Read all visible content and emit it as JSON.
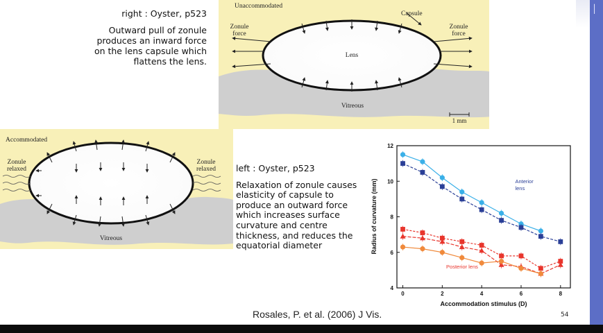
{
  "slide": {
    "right_caption": {
      "title": "right : Oyster, p523",
      "body": "Outward pull of zonule produces an inward force on the lens capsule which flattens the lens."
    },
    "left_caption": {
      "title": "left : Oyster, p523",
      "body": "Relaxation of zonule causes elasticity of capsule to produce an outward force which increases surface curvature and centre thickness, and reduces the equatorial diameter"
    },
    "citation": "Rosales, P. et al. (2006) J Vis.",
    "page_number": "54"
  },
  "diagram_unaccommodated": {
    "title": "Unaccommodated",
    "capsule": "Capsule",
    "zonule_left": [
      "Zonule",
      "force"
    ],
    "zonule_right": [
      "Zonule",
      "force"
    ],
    "lens": "Lens",
    "vitreous": "Vitreous",
    "scale": "1 mm"
  },
  "diagram_accommodated": {
    "title": "Accommodated",
    "zonule_left": [
      "Zonule",
      "relaxed"
    ],
    "zonule_right": [
      "Zonule",
      "relaxed"
    ],
    "vitreous": "Vitreous"
  },
  "colors": {
    "panel_bg": "#f8f0b8",
    "vitreous": "#cfcfcf",
    "anterior_light": "#3ab0e8",
    "anterior_dark": "#2a3f97",
    "posterior_light": "#f08a3c",
    "posterior_red": "#e8352c",
    "sidebar": "#5c6ec6"
  },
  "chart_data": {
    "type": "line",
    "xlabel": "Accommodation stimulus (D)",
    "ylabel": "Radius of curvature (mm)",
    "x_ticks": [
      "0",
      "2",
      "4",
      "6",
      "8"
    ],
    "y_ticks": [
      "4",
      "6",
      "8",
      "10",
      "12"
    ],
    "xlim": [
      -0.3,
      8.5
    ],
    "ylim": [
      4,
      12
    ],
    "annotations": [
      {
        "text": "Anterior",
        "x": 5.7,
        "y": 9.9,
        "color": "#2a3f97"
      },
      {
        "text": "lens",
        "x": 5.7,
        "y": 9.5,
        "color": "#2a3f97"
      },
      {
        "text": "Posterior lens",
        "x": 2.2,
        "y": 5.1,
        "color": "#e8352c"
      }
    ],
    "series": [
      {
        "name": "",
        "color": "#3ab0e8",
        "dash": "",
        "marker": "circle",
        "x": [
          0,
          1,
          2,
          3,
          4,
          5,
          6,
          7
        ],
        "values": [
          11.5,
          11.1,
          10.2,
          9.4,
          8.8,
          8.2,
          7.6,
          7.2
        ]
      },
      {
        "name": "",
        "color": "#2a3f97",
        "dash": "4,2",
        "marker": "square",
        "x": [
          0,
          1,
          2,
          3,
          4,
          5,
          6,
          7,
          8
        ],
        "values": [
          11.0,
          10.5,
          9.7,
          9.0,
          8.4,
          7.8,
          7.4,
          6.9,
          6.6
        ]
      },
      {
        "name": "",
        "color": "#e8352c",
        "dash": "3,2",
        "marker": "square",
        "x": [
          0,
          1,
          2,
          3,
          4,
          5,
          6,
          7,
          8
        ],
        "values": [
          7.3,
          7.1,
          6.8,
          6.6,
          6.4,
          5.8,
          5.8,
          5.1,
          5.5
        ]
      },
      {
        "name": "",
        "color": "#e8352c",
        "dash": "5,2",
        "marker": "triangle",
        "x": [
          0,
          1,
          2,
          3,
          4,
          5,
          6,
          7,
          8
        ],
        "values": [
          6.9,
          6.8,
          6.6,
          6.3,
          6.1,
          5.3,
          5.2,
          4.8,
          5.3
        ]
      },
      {
        "name": "",
        "color": "#f08a3c",
        "dash": "",
        "marker": "circle",
        "x": [
          0,
          1,
          2,
          3,
          4,
          5,
          6,
          7
        ],
        "values": [
          6.3,
          6.2,
          6.0,
          5.7,
          5.4,
          5.5,
          5.1,
          4.8
        ]
      }
    ]
  }
}
